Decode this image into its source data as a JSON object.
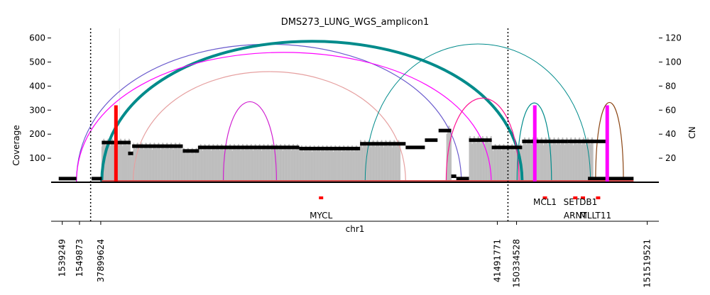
{
  "chart_data": {
    "type": "area",
    "title": "DMS273_LUNG_WGS_amplicon1",
    "xlabel": "chr1",
    "ylabel_left": "Coverage",
    "ylabel_right": "CN",
    "ylim_left": [
      0,
      640
    ],
    "ylim_right": [
      0,
      128
    ],
    "yticks_left": [
      100,
      200,
      300,
      400,
      500,
      600
    ],
    "yticks_right": [
      20,
      40,
      60,
      80,
      100,
      120
    ],
    "x_tick_labels": [
      "1539249",
      "1549873",
      "37899624",
      "41491771",
      "150334528",
      "151519521"
    ],
    "segment_boundaries": [
      "37899624",
      "41491771"
    ],
    "genes": [
      "MYCL",
      "MCL1",
      "SETDB1",
      "ARNT",
      "MLLT11"
    ],
    "copy_number_segments": [
      {
        "from": 0.015,
        "to": 0.05,
        "cn": 3
      },
      {
        "from": 0.08,
        "to": 0.1,
        "cn": 3
      },
      {
        "from": 0.1,
        "to": 0.157,
        "cn": 33
      },
      {
        "from": 0.152,
        "to": 0.162,
        "cn": 24
      },
      {
        "from": 0.16,
        "to": 0.26,
        "cn": 30
      },
      {
        "from": 0.26,
        "to": 0.292,
        "cn": 26
      },
      {
        "from": 0.29,
        "to": 0.49,
        "cn": 29
      },
      {
        "from": 0.49,
        "to": 0.61,
        "cn": 28
      },
      {
        "from": 0.61,
        "to": 0.7,
        "cn": 32
      },
      {
        "from": 0.7,
        "to": 0.738,
        "cn": 29
      },
      {
        "from": 0.738,
        "to": 0.763,
        "cn": 35
      },
      {
        "from": 0.765,
        "to": 0.79,
        "cn": 43
      },
      {
        "from": 0.79,
        "to": 0.8,
        "cn": 5
      },
      {
        "from": 0.8,
        "to": 0.825,
        "cn": 3
      },
      {
        "from": 0.825,
        "to": 0.87,
        "cn": 35
      },
      {
        "from": 0.87,
        "to": 0.93,
        "cn": 29
      },
      {
        "from": 0.93,
        "to": 1.02,
        "cn": 34
      },
      {
        "from": 1.02,
        "to": 1.1,
        "cn": 34
      },
      {
        "from": 1.06,
        "to": 1.15,
        "cn": 3
      }
    ],
    "breakpoints": [
      {
        "from": 0.05,
        "to": 0.81,
        "color": "#6a5acd",
        "coverage": 574
      },
      {
        "from": 0.1,
        "to": 0.93,
        "color": "#008b8b",
        "coverage": 586
      },
      {
        "from": 0.05,
        "to": 0.869,
        "color": "#ff00ff",
        "coverage": 540
      },
      {
        "from": 0.34,
        "to": 0.445,
        "color": "#d020d0",
        "coverage": 335
      },
      {
        "from": 0.162,
        "to": 0.7,
        "color": "#e6a0a0",
        "coverage": 460
      },
      {
        "from": 0.62,
        "to": 1.065,
        "color": "#008b8b",
        "coverage": 575
      },
      {
        "from": 0.78,
        "to": 0.924,
        "color": "#ff1493",
        "coverage": 350
      },
      {
        "from": 0.92,
        "to": 0.988,
        "color": "#008b8b",
        "coverage": 330
      },
      {
        "from": 1.075,
        "to": 1.13,
        "color": "#8b4513",
        "coverage": 332
      }
    ],
    "vertical_markers": [
      {
        "x": 0.128,
        "color": "#ff0000",
        "cn": 64
      },
      {
        "x": 0.955,
        "color": "#ff00ff",
        "cn": 64
      },
      {
        "x": 1.098,
        "color": "#ff00ff",
        "cn": 64
      }
    ],
    "grid": false,
    "legend": "none"
  }
}
